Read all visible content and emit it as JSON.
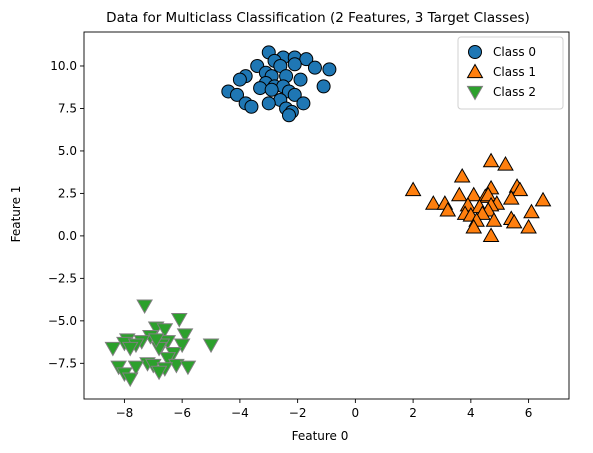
{
  "chart_data": {
    "type": "scatter",
    "title": "Data for Multiclass Classification (2 Features, 3 Target Classes)",
    "xlabel": "Feature 0",
    "ylabel": "Feature 1",
    "xlim": [
      -9.4,
      7.4
    ],
    "ylim": [
      -9.6,
      12.0
    ],
    "xticks": [
      -8,
      -6,
      -4,
      -2,
      0,
      2,
      4,
      6
    ],
    "xtick_labels": [
      "−8",
      "−6",
      "−4",
      "−2",
      "0",
      "2",
      "4",
      "6"
    ],
    "yticks": [
      -7.5,
      -5.0,
      -2.5,
      0.0,
      2.5,
      5.0,
      7.5,
      10.0
    ],
    "ytick_labels": [
      "−7.5",
      "−5.0",
      "−2.5",
      "0.0",
      "2.5",
      "5.0",
      "7.5",
      "10.0"
    ],
    "grid": false,
    "legend_position": "top-right",
    "series": [
      {
        "name": "Class 0",
        "marker": "circle",
        "color": "#1f77b4",
        "edge": "#000000",
        "points": [
          [
            -3.0,
            10.8
          ],
          [
            -2.5,
            10.5
          ],
          [
            -2.1,
            10.5
          ],
          [
            -1.7,
            10.4
          ],
          [
            -2.8,
            10.3
          ],
          [
            -2.1,
            10.1
          ],
          [
            -3.4,
            10.0
          ],
          [
            -2.6,
            10.0
          ],
          [
            -1.4,
            9.9
          ],
          [
            -0.9,
            9.8
          ],
          [
            -3.1,
            9.6
          ],
          [
            -3.8,
            9.4
          ],
          [
            -2.9,
            9.4
          ],
          [
            -2.4,
            9.4
          ],
          [
            -4.0,
            9.2
          ],
          [
            -1.9,
            9.2
          ],
          [
            -3.1,
            9.0
          ],
          [
            -2.8,
            8.8
          ],
          [
            -2.5,
            8.8
          ],
          [
            -3.3,
            8.7
          ],
          [
            -2.9,
            8.6
          ],
          [
            -1.1,
            8.8
          ],
          [
            -2.3,
            8.5
          ],
          [
            -4.4,
            8.5
          ],
          [
            -2.1,
            8.3
          ],
          [
            -4.1,
            8.3
          ],
          [
            -2.6,
            8.0
          ],
          [
            -1.8,
            7.8
          ],
          [
            -3.8,
            7.8
          ],
          [
            -3.0,
            7.8
          ],
          [
            -3.6,
            7.6
          ],
          [
            -2.4,
            7.5
          ],
          [
            -2.2,
            7.3
          ],
          [
            -2.3,
            7.1
          ]
        ]
      },
      {
        "name": "Class 1",
        "marker": "triangle-up",
        "color": "#ff7f0e",
        "edge": "#000000",
        "points": [
          [
            4.7,
            4.4
          ],
          [
            5.2,
            4.2
          ],
          [
            3.7,
            3.5
          ],
          [
            5.6,
            2.9
          ],
          [
            4.7,
            2.8
          ],
          [
            2.0,
            2.7
          ],
          [
            5.7,
            2.7
          ],
          [
            3.6,
            2.4
          ],
          [
            4.1,
            2.4
          ],
          [
            4.5,
            2.3
          ],
          [
            4.6,
            2.4
          ],
          [
            5.4,
            2.2
          ],
          [
            6.5,
            2.1
          ],
          [
            4.9,
            1.9
          ],
          [
            4.7,
            1.8
          ],
          [
            2.7,
            1.9
          ],
          [
            3.1,
            1.9
          ],
          [
            3.9,
            1.8
          ],
          [
            4.3,
            1.7
          ],
          [
            4.6,
            1.5
          ],
          [
            6.1,
            1.4
          ],
          [
            3.8,
            1.3
          ],
          [
            3.2,
            1.5
          ],
          [
            4.4,
            1.3
          ],
          [
            4.0,
            1.2
          ],
          [
            5.4,
            1.0
          ],
          [
            4.2,
            0.9
          ],
          [
            4.8,
            0.9
          ],
          [
            5.5,
            0.8
          ],
          [
            4.1,
            0.5
          ],
          [
            6.0,
            0.5
          ],
          [
            4.7,
            0.0
          ]
        ]
      },
      {
        "name": "Class 2",
        "marker": "triangle-down",
        "color": "#2ca02c",
        "edge": "#7f7f7f",
        "points": [
          [
            -7.3,
            -4.1
          ],
          [
            -6.1,
            -4.9
          ],
          [
            -6.9,
            -5.4
          ],
          [
            -6.6,
            -5.5
          ],
          [
            -5.9,
            -5.8
          ],
          [
            -7.1,
            -5.9
          ],
          [
            -7.9,
            -6.1
          ],
          [
            -8.0,
            -6.3
          ],
          [
            -6.5,
            -6.2
          ],
          [
            -7.4,
            -6.2
          ],
          [
            -6.7,
            -6.4
          ],
          [
            -7.6,
            -6.4
          ],
          [
            -6.0,
            -6.4
          ],
          [
            -6.8,
            -6.6
          ],
          [
            -8.4,
            -6.6
          ],
          [
            -7.8,
            -6.6
          ],
          [
            -6.3,
            -6.9
          ],
          [
            -6.5,
            -7.2
          ],
          [
            -7.2,
            -7.5
          ],
          [
            -6.2,
            -7.6
          ],
          [
            -7.0,
            -7.6
          ],
          [
            -8.2,
            -7.7
          ],
          [
            -5.8,
            -7.7
          ],
          [
            -6.6,
            -7.8
          ],
          [
            -6.8,
            -8.0
          ],
          [
            -8.0,
            -8.1
          ],
          [
            -7.8,
            -8.4
          ],
          [
            -7.6,
            -7.7
          ],
          [
            -6.9,
            -6.1
          ],
          [
            -5.0,
            -6.4
          ]
        ]
      }
    ]
  }
}
